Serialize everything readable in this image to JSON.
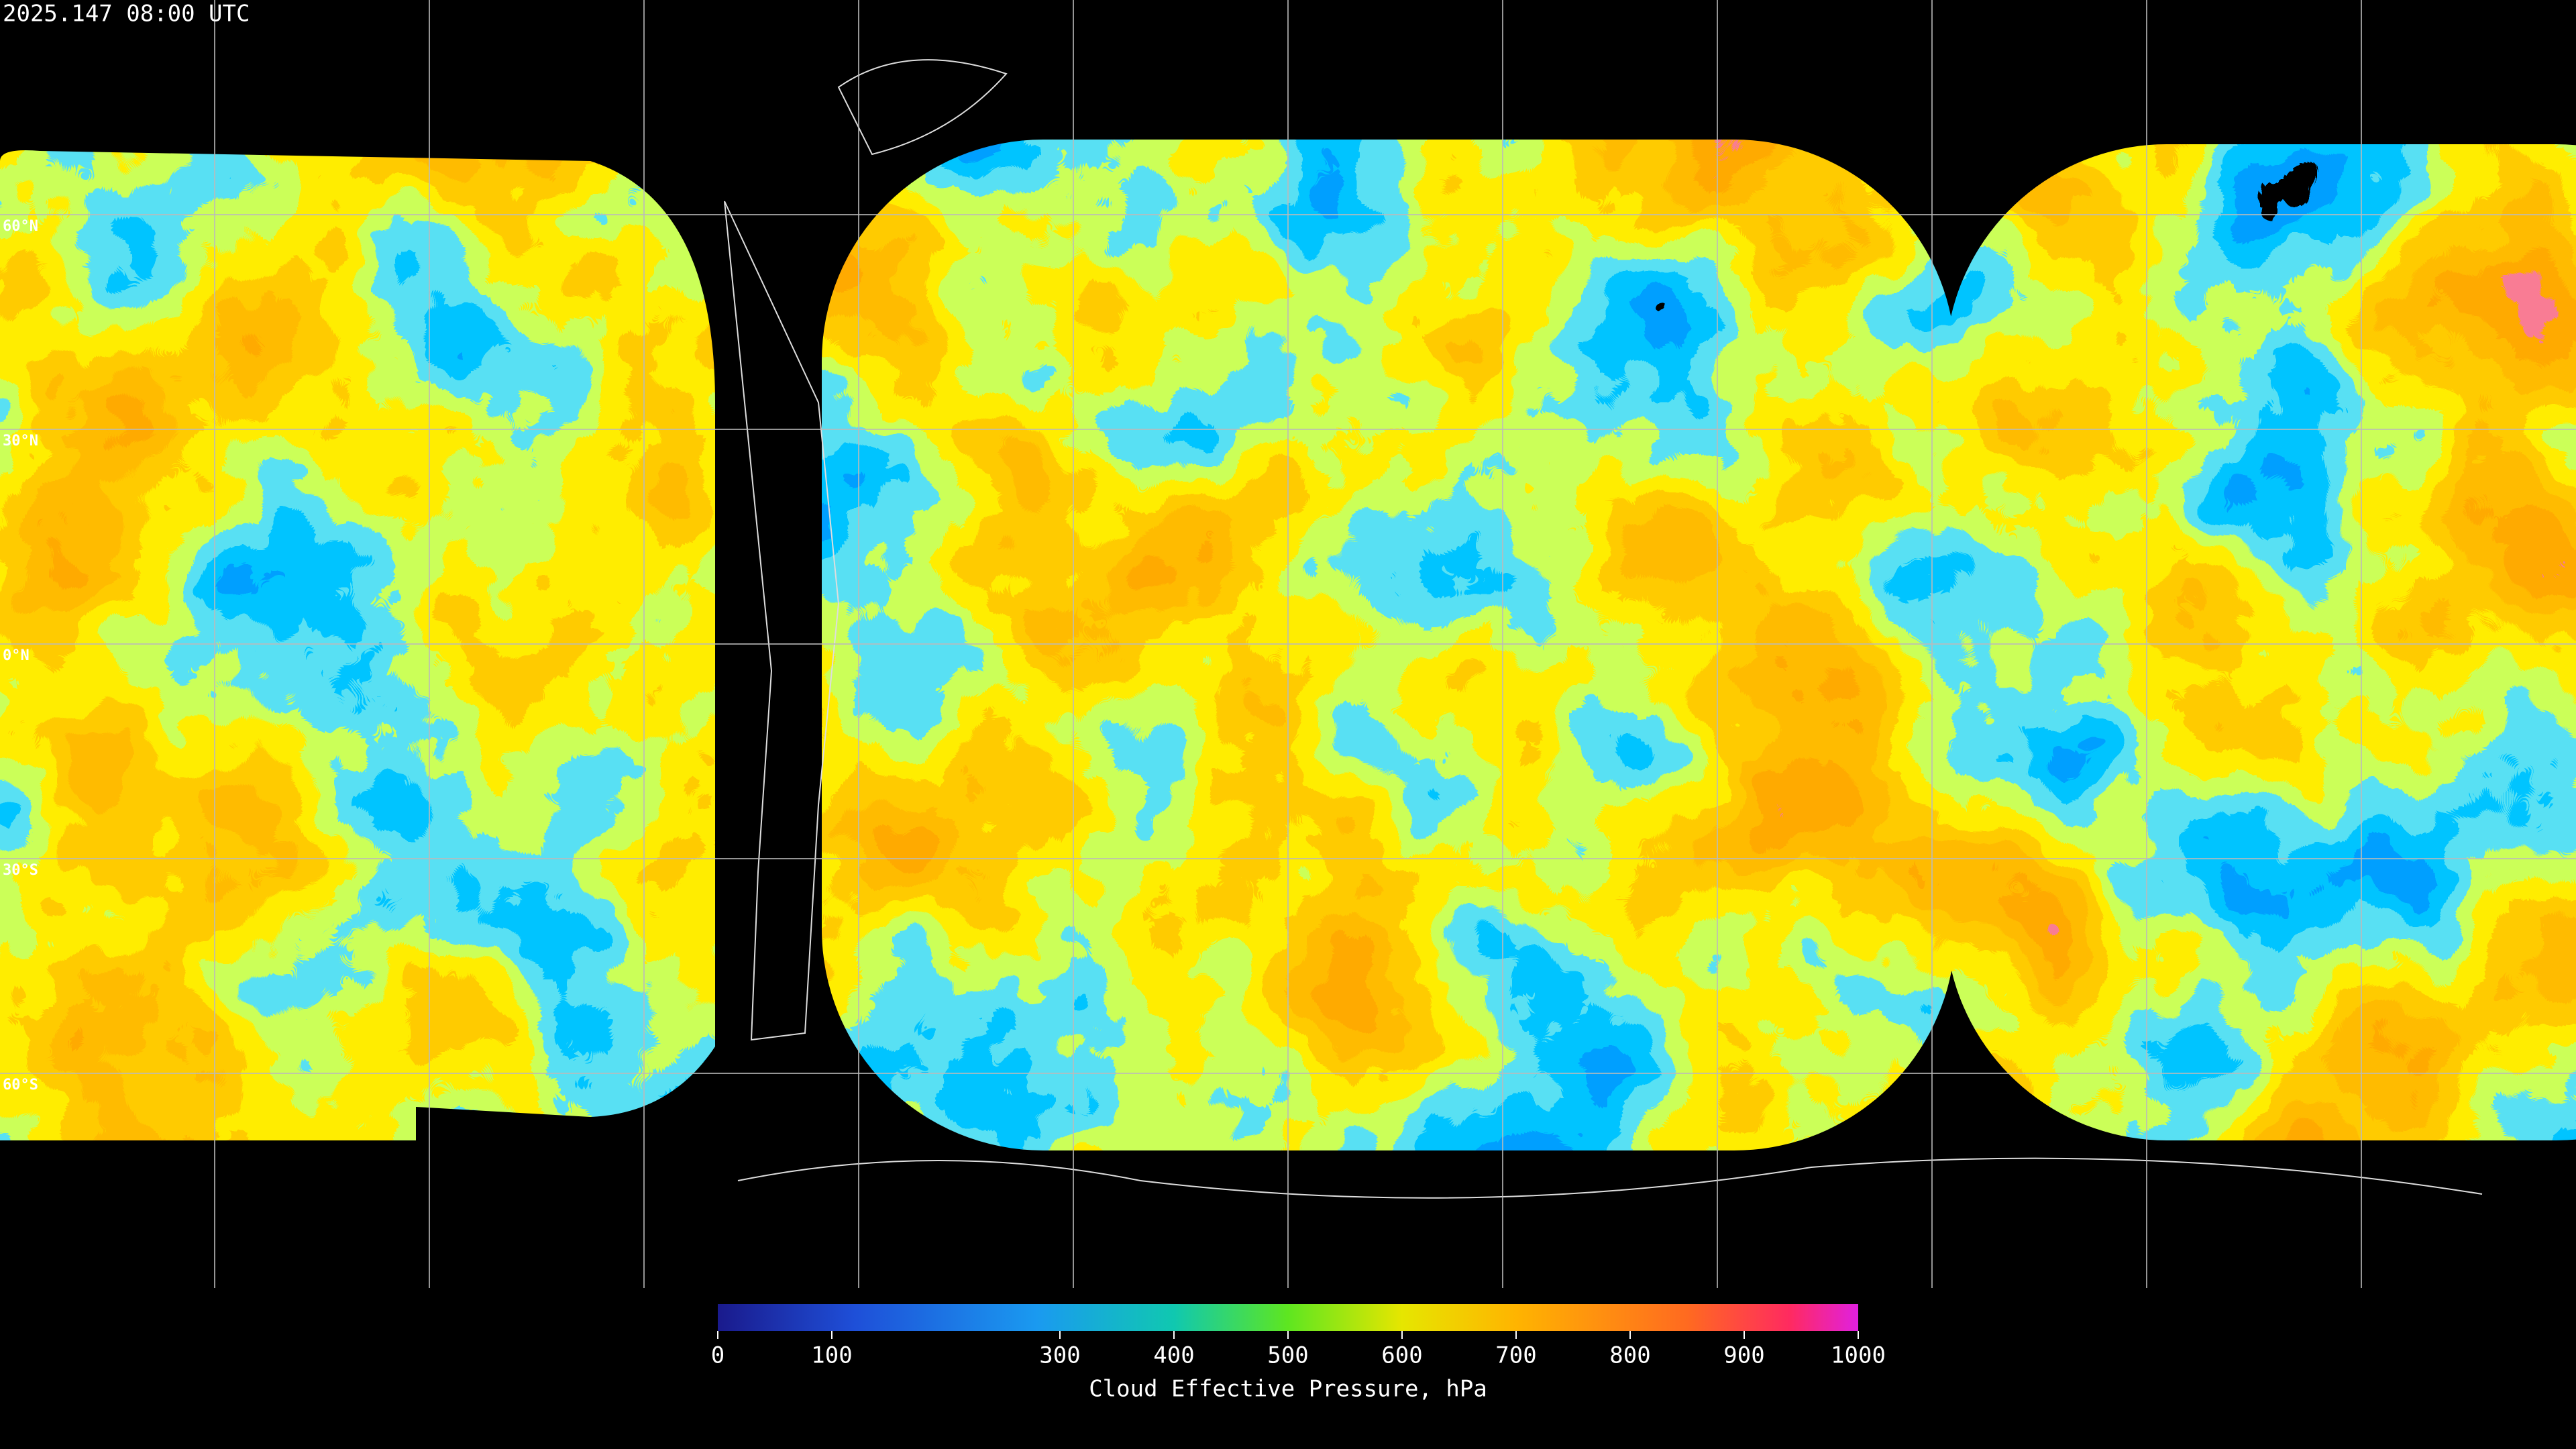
{
  "header": {
    "title": "2025.147 08:00 UTC"
  },
  "map": {
    "latlim": [
      -90,
      90
    ],
    "lat_ticks": [
      {
        "value": 60,
        "label": "60°N"
      },
      {
        "value": 30,
        "label": "30°N"
      },
      {
        "value": 0,
        "label": "0°N"
      },
      {
        "value": -30,
        "label": "30°S"
      },
      {
        "value": -60,
        "label": "60°S"
      }
    ]
  },
  "colorbar": {
    "label": "Cloud Effective Pressure, hPa",
    "lim": [
      0,
      1000
    ],
    "ticks": [
      0,
      100,
      300,
      400,
      500,
      600,
      700,
      800,
      900,
      1000
    ]
  }
}
